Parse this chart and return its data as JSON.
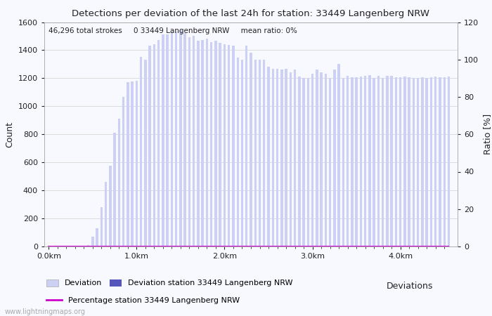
{
  "title": "Detections per deviation of the last 24h for station: 33449 Langenberg NRW",
  "annotation": "46,296 total strokes     0 33449 Langenberg NRW     mean ratio: 0%",
  "ylabel_left": "Count",
  "ylabel_right": "Ratio [%]",
  "xlabel_right": "Deviations",
  "ylim_left": [
    0,
    1600
  ],
  "ylim_right": [
    0,
    120
  ],
  "yticks_left": [
    0,
    200,
    400,
    600,
    800,
    1000,
    1200,
    1400,
    1600
  ],
  "yticks_right": [
    0,
    20,
    40,
    60,
    80,
    100,
    120
  ],
  "xtick_labels": [
    "0.0km",
    "1.0km",
    "2.0km",
    "3.0km",
    "4.0km"
  ],
  "bar_color_light": "#cdd0f5",
  "bar_color_dark": "#5555bb",
  "line_color": "#cc00cc",
  "bg_color": "#f8f8ff",
  "grid_color": "#dddddd",
  "text_color": "#222222",
  "watermark": "www.lightningmaps.org",
  "legend_deviation": "Deviation",
  "legend_station": "Deviation station 33449 Langenberg NRW",
  "legend_percentage": "Percentage station 33449 Langenberg NRW",
  "num_bars": 92,
  "deviation_values": [
    2,
    2,
    2,
    2,
    2,
    3,
    4,
    5,
    6,
    8,
    70,
    130,
    280,
    460,
    575,
    810,
    910,
    1065,
    1170,
    1175,
    1180,
    1350,
    1330,
    1430,
    1440,
    1470,
    1510,
    1510,
    1530,
    1530,
    1540,
    1520,
    1490,
    1500,
    1465,
    1470,
    1480,
    1455,
    1465,
    1450,
    1440,
    1435,
    1430,
    1345,
    1330,
    1430,
    1380,
    1330,
    1330,
    1330,
    1280,
    1265,
    1265,
    1260,
    1265,
    1240,
    1260,
    1210,
    1200,
    1200,
    1230,
    1260,
    1240,
    1230,
    1200,
    1260,
    1300,
    1200,
    1215,
    1205,
    1205,
    1210,
    1215,
    1220,
    1200,
    1215,
    1200,
    1215,
    1215,
    1205,
    1205,
    1210,
    1205,
    1200,
    1200,
    1205,
    1200,
    1205,
    1210,
    1205,
    1205,
    1210
  ],
  "station_values": [
    0,
    0,
    0,
    0,
    0,
    0,
    0,
    0,
    0,
    0,
    0,
    0,
    0,
    0,
    0,
    0,
    0,
    0,
    0,
    0,
    0,
    0,
    0,
    0,
    0,
    0,
    0,
    0,
    0,
    0,
    0,
    0,
    0,
    0,
    0,
    0,
    0,
    0,
    0,
    0,
    0,
    0,
    0,
    0,
    0,
    0,
    0,
    0,
    0,
    0,
    0,
    0,
    0,
    0,
    0,
    0,
    0,
    0,
    0,
    0,
    0,
    0,
    0,
    0,
    0,
    0,
    0,
    0,
    0,
    0,
    0,
    0,
    0,
    0,
    0,
    0,
    0,
    0,
    0,
    0,
    0,
    0,
    0,
    0,
    0,
    0,
    0,
    0,
    0,
    0,
    0,
    0
  ],
  "percentage_values": [
    0,
    0,
    0,
    0,
    0,
    0,
    0,
    0,
    0,
    0,
    0,
    0,
    0,
    0,
    0,
    0,
    0,
    0,
    0,
    0,
    0,
    0,
    0,
    0,
    0,
    0,
    0,
    0,
    0,
    0,
    0,
    0,
    0,
    0,
    0,
    0,
    0,
    0,
    0,
    0,
    0,
    0,
    0,
    0,
    0,
    0,
    0,
    0,
    0,
    0,
    0,
    0,
    0,
    0,
    0,
    0,
    0,
    0,
    0,
    0,
    0,
    0,
    0,
    0,
    0,
    0,
    0,
    0,
    0,
    0,
    0,
    0,
    0,
    0,
    0,
    0,
    0,
    0,
    0,
    0,
    0,
    0,
    0,
    0,
    0,
    0,
    0,
    0,
    0,
    0,
    0,
    0
  ]
}
